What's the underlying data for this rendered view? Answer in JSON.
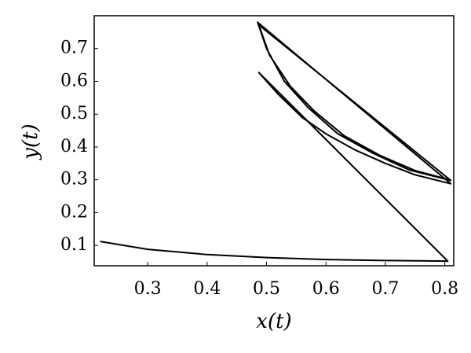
{
  "chart_data": {
    "type": "line",
    "x_label": "x(t)",
    "y_label": "y(t)",
    "x": [
      0.22,
      0.3,
      0.4,
      0.5,
      0.6,
      0.7,
      0.805,
      0.487,
      0.52,
      0.56,
      0.6,
      0.65,
      0.7,
      0.75,
      0.81,
      0.485,
      0.5,
      0.53,
      0.57,
      0.62,
      0.68,
      0.74,
      0.81,
      0.487,
      0.505,
      0.54,
      0.58,
      0.63,
      0.69,
      0.75,
      0.808
    ],
    "series": [
      {
        "color": "#000000",
        "values": [
          0.112,
          0.088,
          0.072,
          0.063,
          0.057,
          0.054,
          0.052,
          0.627,
          0.56,
          0.49,
          0.44,
          0.39,
          0.35,
          0.315,
          0.288,
          0.78,
          0.7,
          0.6,
          0.52,
          0.44,
          0.38,
          0.33,
          0.298,
          0.772,
          0.68,
          0.585,
          0.51,
          0.435,
          0.375,
          0.328,
          0.3
        ]
      }
    ],
    "xlim": [
      0.21,
      0.815
    ],
    "ylim": [
      0.038,
      0.8
    ],
    "xticks": [
      0.3,
      0.4,
      0.5,
      0.6,
      0.7,
      0.8
    ],
    "yticks": [
      0.1,
      0.2,
      0.3,
      0.4,
      0.5,
      0.6,
      0.7
    ],
    "grid": false
  }
}
